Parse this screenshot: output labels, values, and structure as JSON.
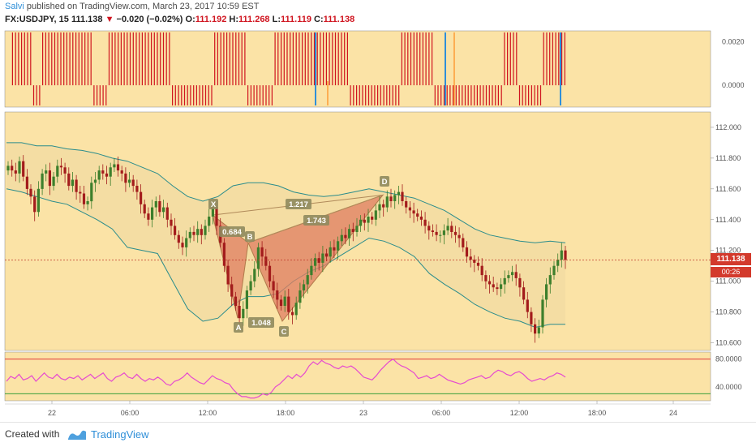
{
  "header": {
    "author": "Salvi",
    "published_text": "published on TradingView.com, March 23, 2017 10:59 EST",
    "symbol": "FX:USDJPY, 15",
    "last": "111.138",
    "change_arrow": "▼",
    "change": "−0.020 (−0.02%)",
    "o_label": "O:",
    "o_value": "111.192",
    "h_label": "H:",
    "h_value": "111.268",
    "l_label": "L:",
    "l_value": "111.119",
    "c_label": "C:",
    "c_value": "111.138"
  },
  "price_badge": {
    "value": "111.138",
    "countdown": "00:26"
  },
  "footer": {
    "created_with": "Created with",
    "brand": "TradingView"
  },
  "colors": {
    "background": "#fbe3a6",
    "bull": "#3d7f2c",
    "bear": "#a31c1c",
    "bollinger": "#2a8c8c",
    "pattern_fill": "#e07e62",
    "rsi": "#e64ad0",
    "histogram": "#d0141f"
  },
  "chart_data": [
    {
      "type": "bar",
      "title": "",
      "x_axis": {
        "ticks": [
          "22",
          "06:00",
          "12:00",
          "18:00",
          "23",
          "06:00",
          "12:00",
          "18:00",
          "24"
        ]
      },
      "y_axis": {
        "ticks": [
          0.002,
          0.0
        ],
        "tick_labels": [
          "0.0020",
          "0.0000"
        ],
        "range": [
          -0.001,
          0.0025
        ]
      },
      "series": [
        {
          "values": [
            0,
            0,
            1,
            1,
            1,
            1,
            1,
            1,
            1,
            -1,
            -1,
            -1,
            1,
            1,
            1,
            1,
            1,
            1,
            1,
            1,
            1,
            1,
            1,
            1,
            1,
            1,
            1,
            1,
            1,
            -1,
            -1,
            -1,
            -1,
            -1,
            1,
            1,
            1,
            1,
            1,
            1,
            1,
            1,
            1,
            1,
            1,
            1,
            1,
            1,
            1,
            1,
            1,
            1,
            1,
            1,
            1,
            -1,
            -1,
            -1,
            -1,
            -1,
            -1,
            -1,
            -1,
            -1,
            -1,
            -1,
            -1,
            -1,
            -1,
            1,
            1,
            1,
            1,
            1,
            1,
            1,
            1,
            1,
            1,
            1,
            -1,
            -1,
            -1,
            -1,
            -1,
            -1,
            -1,
            -1,
            -1,
            1,
            1,
            1,
            1,
            1,
            1,
            1,
            1,
            1,
            1,
            1,
            1,
            1,
            1,
            1,
            1,
            1,
            1,
            1,
            1,
            1,
            1,
            1,
            1,
            1,
            -1,
            -1,
            -1,
            -1,
            -1,
            -1,
            -1,
            -1,
            -1,
            -1,
            -1,
            -1,
            -1,
            -1,
            -1,
            -1,
            -1,
            1,
            1,
            1,
            1,
            1,
            1,
            1,
            1,
            1,
            1,
            1,
            -1,
            -1,
            -1,
            -1,
            -1,
            -1,
            -1,
            -1,
            -1,
            -1,
            -1,
            -1,
            -1,
            -1,
            -1,
            -1,
            -1,
            -1,
            -1,
            -1,
            -1,
            -1,
            -1,
            1,
            1,
            1,
            1,
            1,
            -1,
            -1,
            -1,
            -1,
            -1,
            -1,
            -1,
            -1,
            1,
            1,
            1,
            1,
            1,
            1,
            1,
            1
          ]
        }
      ]
    },
    {
      "type": "candlestick",
      "title": "",
      "x_axis": {
        "ticks": [
          "22",
          "06:00",
          "12:00",
          "18:00",
          "23",
          "06:00",
          "12:00",
          "18:00",
          "24"
        ]
      },
      "y_axis": {
        "range": [
          110.55,
          112.1
        ],
        "ticks": [
          112.0,
          111.8,
          111.6,
          111.4,
          111.2,
          111.0,
          110.8,
          110.6
        ],
        "tick_labels": [
          "112.000",
          "111.800",
          "111.600",
          "111.400",
          "111.200",
          "111.000",
          "110.800",
          "110.600"
        ]
      },
      "last_price": 111.138,
      "series": [
        {
          "name": "close",
          "values": [
            111.75,
            111.72,
            111.7,
            111.78,
            111.68,
            111.6,
            111.55,
            111.45,
            111.6,
            111.7,
            111.72,
            111.62,
            111.68,
            111.75,
            111.74,
            111.7,
            111.62,
            111.66,
            111.58,
            111.57,
            111.5,
            111.52,
            111.64,
            111.66,
            111.72,
            111.7,
            111.68,
            111.74,
            111.76,
            111.72,
            111.7,
            111.64,
            111.66,
            111.62,
            111.58,
            111.5,
            111.44,
            111.4,
            111.48,
            111.52,
            111.45,
            111.48,
            111.4,
            111.36,
            111.3,
            111.25,
            111.22,
            111.28,
            111.32,
            111.3,
            111.34,
            111.3,
            111.36,
            111.42,
            111.48,
            111.36,
            111.25,
            111.1,
            110.98,
            110.9,
            110.84,
            110.76,
            110.82,
            110.94,
            111.0,
            111.08,
            111.22,
            111.16,
            111.1,
            111.0,
            110.94,
            110.88,
            110.84,
            110.9,
            110.8,
            110.78,
            110.86,
            110.94,
            110.98,
            111.04,
            111.1,
            111.15,
            111.12,
            111.18,
            111.16,
            111.22,
            111.2,
            111.26,
            111.3,
            111.28,
            111.34,
            111.32,
            111.36,
            111.4,
            111.38,
            111.42,
            111.4,
            111.46,
            111.5,
            111.48,
            111.55,
            111.52,
            111.56,
            111.58,
            111.52,
            111.48,
            111.46,
            111.44,
            111.42,
            111.4,
            111.36,
            111.33,
            111.32,
            111.3,
            111.3,
            111.33,
            111.36,
            111.32,
            111.3,
            111.28,
            111.22,
            111.16,
            111.14,
            111.12,
            111.1,
            111.04,
            111.0,
            110.98,
            110.96,
            110.95,
            110.98,
            111.02,
            111.04,
            111.06,
            111.02,
            110.96,
            110.88,
            110.8,
            110.72,
            110.66,
            110.7,
            110.88,
            110.98,
            111.04,
            111.1,
            111.14,
            111.2,
            111.14
          ],
          "x_index_range": [
            0,
            145
          ]
        },
        {
          "name": "Bollinger upper",
          "values": [
            111.9,
            111.9,
            111.88,
            111.88,
            111.86,
            111.85,
            111.83,
            111.8,
            111.78,
            111.74,
            111.7,
            111.62,
            111.55,
            111.52,
            111.55,
            111.62,
            111.64,
            111.64,
            111.62,
            111.58,
            111.56,
            111.55,
            111.56,
            111.58,
            111.6,
            111.58,
            111.56,
            111.54,
            111.5,
            111.46,
            111.4,
            111.34,
            111.3,
            111.28,
            111.26,
            111.25,
            111.26,
            111.25
          ]
        },
        {
          "name": "Bollinger lower",
          "values": [
            111.6,
            111.58,
            111.55,
            111.52,
            111.5,
            111.45,
            111.4,
            111.34,
            111.22,
            111.2,
            111.18,
            111.0,
            110.82,
            110.74,
            110.76,
            110.85,
            110.9,
            110.9,
            110.92,
            111.0,
            111.06,
            111.1,
            111.16,
            111.22,
            111.28,
            111.26,
            111.22,
            111.16,
            111.05,
            110.98,
            110.92,
            110.85,
            110.8,
            110.76,
            110.74,
            110.7,
            110.72,
            110.72
          ]
        }
      ],
      "annotations": {
        "pattern_points": {
          "X": [
            "12:00",
            111.43
          ],
          "A": [
            "16:00",
            110.76
          ],
          "B": [
            "18:00",
            111.25
          ],
          "C": [
            "22:00",
            110.74
          ],
          "D": [
            "23 01:00",
            111.56
          ]
        },
        "pattern_labels": [
          "X",
          "A",
          "B",
          "C",
          "D"
        ],
        "ratio_labels": [
          "0.684",
          "1.048",
          "1.217",
          "1.743"
        ]
      }
    },
    {
      "type": "line",
      "title": "",
      "x_axis": {
        "ticks": [
          "22",
          "06:00",
          "12:00",
          "18:00",
          "23",
          "06:00",
          "12:00",
          "18:00",
          "24"
        ]
      },
      "y_axis": {
        "range": [
          20,
          90
        ],
        "ticks": [
          80,
          40
        ],
        "tick_labels": [
          "80.0000",
          "40.0000"
        ]
      },
      "upper_band": 80,
      "lower_band": 30,
      "series": [
        {
          "name": "rsi",
          "values": [
            48,
            55,
            52,
            58,
            50,
            52,
            56,
            48,
            54,
            60,
            54,
            52,
            58,
            52,
            50,
            54,
            52,
            56,
            50,
            54,
            58,
            52,
            56,
            60,
            52,
            48,
            54,
            56,
            60,
            54,
            52,
            58,
            52,
            48,
            52,
            50,
            54,
            50,
            44,
            42,
            48,
            50,
            54,
            60,
            54,
            50,
            46,
            44,
            50,
            56,
            52,
            50,
            46,
            44,
            36,
            30,
            26,
            26,
            24,
            24,
            26,
            30,
            28,
            32,
            40,
            44,
            50,
            56,
            52,
            58,
            54,
            60,
            70,
            76,
            72,
            78,
            74,
            72,
            68,
            66,
            70,
            68,
            70,
            66,
            60,
            54,
            52,
            50,
            56,
            64,
            70,
            76,
            80,
            74,
            70,
            68,
            64,
            60,
            52,
            54,
            56,
            52,
            54,
            58,
            54,
            50,
            48,
            46,
            44,
            46,
            50,
            52,
            54,
            56,
            52,
            54,
            60,
            64,
            62,
            58,
            56,
            60,
            62,
            58,
            52,
            48,
            50,
            52,
            50,
            54,
            56,
            60,
            58,
            54
          ]
        }
      ]
    }
  ]
}
